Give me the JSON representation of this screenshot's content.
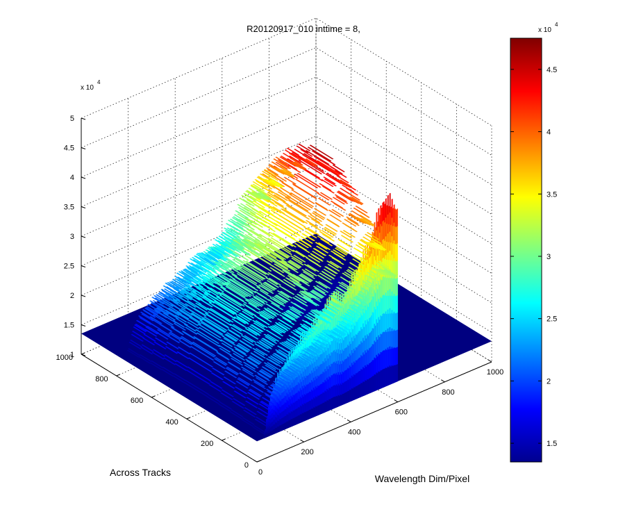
{
  "chart_data": {
    "type": "surface3d",
    "title": "R20120917_010 inttime = 8,",
    "xlabel": "Across Tracks",
    "ylabel": "Wavelength Dim/Pixel",
    "zlabel": "",
    "x_ticks": [
      "0",
      "200",
      "400",
      "600",
      "800",
      "1000"
    ],
    "y_ticks": [
      "0",
      "200",
      "400",
      "600",
      "800",
      "1000"
    ],
    "z_ticks": [
      "1",
      "1.5",
      "2",
      "2.5",
      "3",
      "3.5",
      "4",
      "4.5",
      "5"
    ],
    "z_multiplier": "x 10",
    "z_multiplier_exp": "4",
    "xlim": [
      0,
      1000
    ],
    "ylim": [
      0,
      1000
    ],
    "zlim": [
      10000,
      50000
    ],
    "grid": true,
    "surface": {
      "baseline": 13500,
      "signal_across_tracks_range": [
        0,
        780
      ],
      "signal_wavelength_range": [
        30,
        600
      ],
      "low_ridge": {
        "wavelength_range": [
          600,
          860
        ],
        "across_tracks": [
          560,
          680
        ],
        "z_peak": 14500
      },
      "profile": [
        {
          "wavelength": 30,
          "z": 13500
        },
        {
          "wavelength": 60,
          "z": 21000
        },
        {
          "wavelength": 100,
          "z": 24500
        },
        {
          "wavelength": 150,
          "z": 27000
        },
        {
          "wavelength": 200,
          "z": 29000
        },
        {
          "wavelength": 250,
          "z": 30500
        },
        {
          "wavelength": 300,
          "z": 32500
        },
        {
          "wavelength": 330,
          "z": 34500
        },
        {
          "wavelength": 360,
          "z": 32500
        },
        {
          "wavelength": 400,
          "z": 34500
        },
        {
          "wavelength": 440,
          "z": 37500
        },
        {
          "wavelength": 480,
          "z": 40000
        },
        {
          "wavelength": 510,
          "z": 43500
        },
        {
          "wavelength": 540,
          "z": 46500
        },
        {
          "wavelength": 570,
          "z": 46000
        },
        {
          "wavelength": 600,
          "z": 44000
        }
      ]
    },
    "colorbar": {
      "colormap": "jet",
      "range": [
        13500,
        47500
      ],
      "ticks": [
        "1.5",
        "2",
        "2.5",
        "3",
        "3.5",
        "4",
        "4.5"
      ],
      "tick_values": [
        15000,
        20000,
        25000,
        30000,
        35000,
        40000,
        45000
      ],
      "multiplier": "x 10",
      "multiplier_exp": "4"
    }
  }
}
